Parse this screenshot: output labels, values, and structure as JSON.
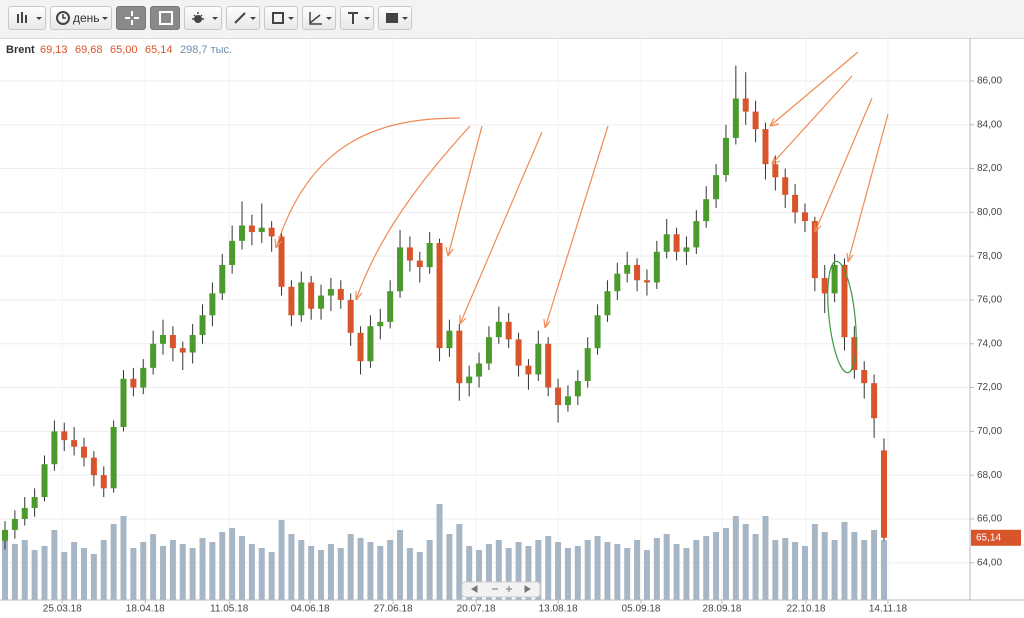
{
  "toolbar": {
    "period": "день"
  },
  "chart_data": {
    "type": "candlestick",
    "legend": {
      "symbol": "Brent",
      "open": "69,13",
      "high": "69,68",
      "low": "65,00",
      "close": "65,14",
      "volume": "298,7 тыс."
    },
    "up_color": "#4a9a2c",
    "down_color": "#d9542b",
    "volume_color": "#a7b6c4",
    "grid": true,
    "xlim": [
      -0.506,
      97.71
    ],
    "xticks": [
      {
        "value": 5.8,
        "label": "25.03.18"
      },
      {
        "value": 14.2,
        "label": "18.04.18"
      },
      {
        "value": 22.7,
        "label": "11.05.18"
      },
      {
        "value": 30.9,
        "label": "04.06.18"
      },
      {
        "value": 39.3,
        "label": "27.06.18"
      },
      {
        "value": 47.7,
        "label": "20.07.18"
      },
      {
        "value": 56.0,
        "label": "13.08.18"
      },
      {
        "value": 64.4,
        "label": "05.09.18"
      },
      {
        "value": 72.6,
        "label": "28.09.18"
      },
      {
        "value": 81.1,
        "label": "22.10.18"
      },
      {
        "value": 89.4,
        "label": "14.11.18"
      }
    ],
    "ylim": [
      62.3,
      87.87
    ],
    "yticks": [
      {
        "value": 64,
        "label": "64,00"
      },
      {
        "value": 66,
        "label": "66,00"
      },
      {
        "value": 68,
        "label": "68,00"
      },
      {
        "value": 70,
        "label": "70,00"
      },
      {
        "value": 72,
        "label": "72,00"
      },
      {
        "value": 74,
        "label": "74,00"
      },
      {
        "value": 76,
        "label": "76,00"
      },
      {
        "value": 78,
        "label": "78,00"
      },
      {
        "value": 80,
        "label": "80,00"
      },
      {
        "value": 82,
        "label": "82,00"
      },
      {
        "value": 84,
        "label": "84,00"
      },
      {
        "value": 86,
        "label": "86,00"
      }
    ],
    "y2lim": [
      0,
      2800
    ],
    "last_price": {
      "value": 65.14,
      "label": "65,14"
    },
    "candles": [
      [
        65.0,
        65.9,
        64.6,
        65.5
      ],
      [
        65.5,
        66.4,
        65.1,
        66
      ],
      [
        66,
        67,
        65.7,
        66.5
      ],
      [
        66.5,
        67.4,
        66.1,
        67
      ],
      [
        67,
        68.9,
        66.8,
        68.5
      ],
      [
        68.5,
        70.5,
        68.2,
        70
      ],
      [
        70,
        70.4,
        69.1,
        69.6
      ],
      [
        69.6,
        70.2,
        68.9,
        69.3
      ],
      [
        69.3,
        69.7,
        68.4,
        68.8
      ],
      [
        68.8,
        69.1,
        67.5,
        68
      ],
      [
        68,
        68.4,
        67,
        67.4
      ],
      [
        67.4,
        70.5,
        67.2,
        70.2
      ],
      [
        70.2,
        72.8,
        70,
        72.4
      ],
      [
        72.4,
        72.9,
        71.6,
        72
      ],
      [
        72,
        73.3,
        71.7,
        72.9
      ],
      [
        72.9,
        74.6,
        72.6,
        74
      ],
      [
        74,
        75.1,
        73.5,
        74.4
      ],
      [
        74.4,
        74.8,
        73.2,
        73.8
      ],
      [
        73.8,
        74.1,
        72.8,
        73.6
      ],
      [
        73.6,
        74.9,
        73.1,
        74.4
      ],
      [
        74.4,
        75.8,
        74,
        75.3
      ],
      [
        75.3,
        76.8,
        74.8,
        76.3
      ],
      [
        76.3,
        78.1,
        76,
        77.6
      ],
      [
        77.6,
        79.4,
        77.2,
        78.7
      ],
      [
        78.7,
        80.5,
        78.3,
        79.4
      ],
      [
        79.4,
        79.9,
        78.5,
        79.1
      ],
      [
        79.1,
        80.4,
        78.6,
        79.3
      ],
      [
        79.3,
        79.6,
        78.2,
        78.9
      ],
      [
        78.9,
        79.1,
        76.2,
        76.6
      ],
      [
        76.6,
        76.9,
        74.8,
        75.3
      ],
      [
        75.3,
        77.3,
        75,
        76.8
      ],
      [
        76.8,
        77.1,
        75.1,
        75.6
      ],
      [
        75.6,
        76.7,
        75.1,
        76.2
      ],
      [
        76.2,
        77,
        75.5,
        76.5
      ],
      [
        76.5,
        76.9,
        75.6,
        76
      ],
      [
        76,
        76.3,
        73.9,
        74.5
      ],
      [
        74.5,
        74.8,
        72.6,
        73.2
      ],
      [
        73.2,
        75.3,
        72.9,
        74.8
      ],
      [
        74.8,
        75.6,
        74.2,
        75
      ],
      [
        75,
        76.9,
        74.7,
        76.4
      ],
      [
        76.4,
        79.2,
        76.1,
        78.4
      ],
      [
        78.4,
        78.9,
        77.3,
        77.8
      ],
      [
        77.8,
        78.2,
        76.8,
        77.5
      ],
      [
        77.5,
        79.1,
        77.2,
        78.6
      ],
      [
        78.6,
        78.8,
        73.2,
        73.8
      ],
      [
        73.8,
        75.1,
        73.4,
        74.6
      ],
      [
        74.6,
        74.9,
        71.4,
        72.2
      ],
      [
        72.2,
        73,
        71.6,
        72.5
      ],
      [
        72.5,
        73.6,
        72,
        73.1
      ],
      [
        73.1,
        74.8,
        72.8,
        74.3
      ],
      [
        74.3,
        75.7,
        74,
        75
      ],
      [
        75,
        75.4,
        73.8,
        74.2
      ],
      [
        74.2,
        74.5,
        72.5,
        73
      ],
      [
        73,
        73.3,
        71.9,
        72.6
      ],
      [
        72.6,
        74.6,
        72.3,
        74
      ],
      [
        74,
        74.3,
        71.6,
        72
      ],
      [
        72,
        72.4,
        70.4,
        71.2
      ],
      [
        71.2,
        72.1,
        70.9,
        71.6
      ],
      [
        71.6,
        72.8,
        71.2,
        72.3
      ],
      [
        72.3,
        74.3,
        72,
        73.8
      ],
      [
        73.8,
        75.8,
        73.5,
        75.3
      ],
      [
        75.3,
        76.9,
        75,
        76.4
      ],
      [
        76.4,
        77.7,
        76,
        77.2
      ],
      [
        77.2,
        78.2,
        76.8,
        77.6
      ],
      [
        77.6,
        77.9,
        76.4,
        76.9
      ],
      [
        76.9,
        77.4,
        76.2,
        76.8
      ],
      [
        76.8,
        78.7,
        76.5,
        78.2
      ],
      [
        78.2,
        79.7,
        77.9,
        79
      ],
      [
        79,
        79.3,
        77.8,
        78.2
      ],
      [
        78.2,
        78.9,
        77.6,
        78.4
      ],
      [
        78.4,
        80.1,
        78.1,
        79.6
      ],
      [
        79.6,
        81.2,
        79.3,
        80.6
      ],
      [
        80.6,
        82.2,
        80.2,
        81.7
      ],
      [
        81.7,
        84,
        81.4,
        83.4
      ],
      [
        83.4,
        86.7,
        83.1,
        85.2
      ],
      [
        85.2,
        86.4,
        84,
        84.6
      ],
      [
        84.6,
        85.1,
        83.2,
        83.8
      ],
      [
        83.8,
        84.1,
        81.5,
        82.2
      ],
      [
        82.2,
        82.6,
        81,
        81.6
      ],
      [
        81.6,
        82,
        80.2,
        80.8
      ],
      [
        80.8,
        81.3,
        79.5,
        80
      ],
      [
        80,
        80.4,
        79.1,
        79.6
      ],
      [
        79.6,
        79.8,
        76.4,
        77
      ],
      [
        77,
        77.6,
        75.4,
        76.3
      ],
      [
        76.3,
        78.1,
        75.9,
        77.6
      ],
      [
        77.6,
        77.9,
        73.7,
        74.3
      ],
      [
        74.3,
        74.8,
        72.4,
        72.8
      ],
      [
        72.8,
        73.2,
        71.5,
        72.2
      ],
      [
        72.2,
        72.6,
        69.7,
        70.6
      ],
      [
        69.13,
        69.68,
        65.0,
        65.14
      ]
    ],
    "volume": [
      330,
      280,
      300,
      250,
      270,
      350,
      240,
      290,
      260,
      230,
      300,
      380,
      420,
      260,
      290,
      330,
      270,
      300,
      280,
      260,
      310,
      290,
      340,
      360,
      320,
      280,
      260,
      240,
      400,
      330,
      300,
      270,
      250,
      280,
      260,
      330,
      310,
      290,
      270,
      300,
      350,
      260,
      240,
      300,
      480,
      330,
      380,
      270,
      250,
      280,
      300,
      260,
      290,
      270,
      300,
      320,
      290,
      260,
      270,
      300,
      320,
      290,
      280,
      260,
      300,
      250,
      310,
      330,
      280,
      260,
      300,
      320,
      340,
      360,
      420,
      380,
      330,
      420,
      300,
      310,
      290,
      270,
      380,
      340,
      300,
      390,
      340,
      300,
      350,
      298.7
    ]
  }
}
